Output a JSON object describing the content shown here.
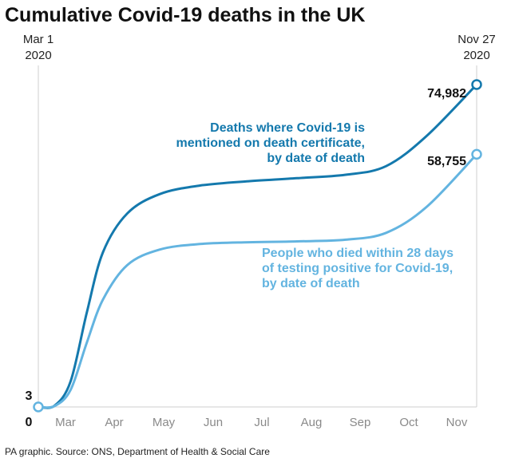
{
  "chart_data": {
    "type": "line",
    "title": "Cumulative Covid-19 deaths in the UK",
    "start_label": "Mar 1",
    "start_year": "2020",
    "end_label": "Nov 27",
    "end_year": "2020",
    "x_ticks": [
      "Mar",
      "Apr",
      "May",
      "Jun",
      "Jul",
      "Aug",
      "Sep",
      "Oct",
      "Nov"
    ],
    "zero_label": "0",
    "start_value_label": "3",
    "ylim": [
      0,
      80000
    ],
    "series": [
      {
        "name": "Deaths where Covid-19 is mentioned on death certificate, by date of death",
        "annotation": [
          "Deaths where Covid-19 is",
          "mentioned on death certificate,",
          "by date of death"
        ],
        "color": "#1479ad",
        "end_label": "74,982",
        "points": [
          {
            "day": 0,
            "value": 3
          },
          {
            "day": 10,
            "value": 300
          },
          {
            "day": 20,
            "value": 6000
          },
          {
            "day": 30,
            "value": 22000
          },
          {
            "day": 40,
            "value": 36000
          },
          {
            "day": 55,
            "value": 45000
          },
          {
            "day": 75,
            "value": 49500
          },
          {
            "day": 100,
            "value": 51500
          },
          {
            "day": 130,
            "value": 52500
          },
          {
            "day": 160,
            "value": 53200
          },
          {
            "day": 190,
            "value": 54000
          },
          {
            "day": 215,
            "value": 56000
          },
          {
            "day": 240,
            "value": 63000
          },
          {
            "day": 271,
            "value": 74982
          }
        ]
      },
      {
        "name": "People who died within 28 days of testing positive for Covid-19, by date of death",
        "annotation": [
          "People who died within 28 days",
          "of testing positive for Covid-19,",
          "by date of death"
        ],
        "color": "#63b4e0",
        "end_label": "58,755",
        "points": [
          {
            "day": 0,
            "value": 3
          },
          {
            "day": 10,
            "value": 200
          },
          {
            "day": 20,
            "value": 4000
          },
          {
            "day": 30,
            "value": 15000
          },
          {
            "day": 40,
            "value": 25000
          },
          {
            "day": 55,
            "value": 33000
          },
          {
            "day": 75,
            "value": 36600
          },
          {
            "day": 100,
            "value": 37900
          },
          {
            "day": 130,
            "value": 38300
          },
          {
            "day": 160,
            "value": 38500
          },
          {
            "day": 190,
            "value": 38900
          },
          {
            "day": 215,
            "value": 40500
          },
          {
            "day": 240,
            "value": 46500
          },
          {
            "day": 271,
            "value": 58755
          }
        ]
      }
    ],
    "total_days": 271
  },
  "footer": {
    "source": "PA graphic. Source: ONS, Department of Health & Social Care"
  }
}
